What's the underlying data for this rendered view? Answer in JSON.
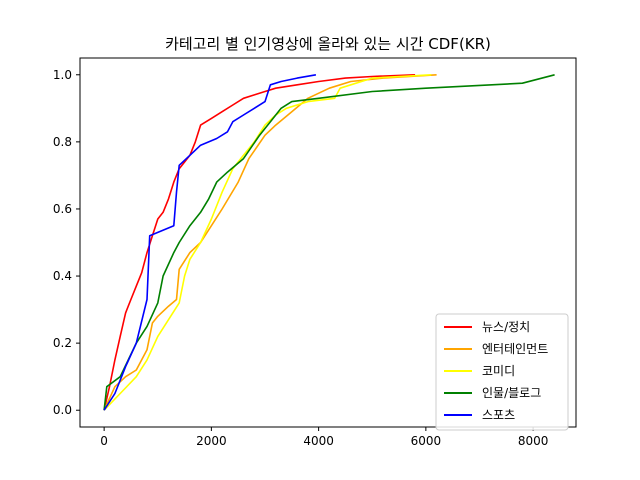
{
  "chart_data": {
    "type": "line",
    "title": "카테고리 별 인기영상에 올라와 있는 시간 CDF(KR)",
    "xlabel": "",
    "ylabel": "",
    "xlim": [
      -450,
      8800
    ],
    "ylim": [
      -0.05,
      1.05
    ],
    "xticks": [
      0,
      2000,
      4000,
      6000,
      8000
    ],
    "yticks": [
      0.0,
      0.2,
      0.4,
      0.6,
      0.8,
      1.0
    ],
    "xtick_labels": [
      "0",
      "2000",
      "4000",
      "6000",
      "8000"
    ],
    "ytick_labels": [
      "0.0",
      "0.2",
      "0.4",
      "0.6",
      "0.8",
      "1.0"
    ],
    "grid": false,
    "legend_position": "lower-right",
    "series": [
      {
        "name": "뉴스/정치",
        "color": "#ff0000",
        "x": [
          0,
          100,
          200,
          300,
          400,
          500,
          600,
          700,
          800,
          900,
          1000,
          1100,
          1200,
          1300,
          1400,
          1500,
          1600,
          1700,
          1800,
          2000,
          2200,
          2400,
          2600,
          2800,
          3000,
          3200,
          3600,
          4000,
          4500,
          5000,
          5800
        ],
        "y": [
          0,
          0.07,
          0.15,
          0.22,
          0.29,
          0.33,
          0.37,
          0.41,
          0.47,
          0.52,
          0.57,
          0.59,
          0.63,
          0.68,
          0.72,
          0.74,
          0.76,
          0.8,
          0.85,
          0.87,
          0.89,
          0.91,
          0.93,
          0.94,
          0.95,
          0.96,
          0.97,
          0.98,
          0.99,
          0.995,
          1.0
        ]
      },
      {
        "name": "엔터테인먼트",
        "color": "#ffa500",
        "x": [
          0,
          200,
          400,
          600,
          800,
          900,
          1000,
          1200,
          1350,
          1400,
          1600,
          1800,
          2000,
          2200,
          2500,
          2700,
          3000,
          3200,
          3500,
          3800,
          4200,
          4600,
          5200,
          6200
        ],
        "y": [
          0,
          0.07,
          0.1,
          0.12,
          0.18,
          0.26,
          0.28,
          0.31,
          0.33,
          0.42,
          0.47,
          0.5,
          0.55,
          0.6,
          0.68,
          0.75,
          0.82,
          0.85,
          0.89,
          0.93,
          0.96,
          0.98,
          0.99,
          1.0
        ]
      },
      {
        "name": "코미디",
        "color": "#ffff00",
        "x": [
          0,
          300,
          600,
          800,
          1000,
          1200,
          1400,
          1500,
          1600,
          1800,
          2000,
          2200,
          2400,
          2600,
          2800,
          3000,
          3200,
          3400,
          3800,
          4300,
          4400,
          5000,
          6100
        ],
        "y": [
          0,
          0.05,
          0.1,
          0.15,
          0.22,
          0.27,
          0.32,
          0.4,
          0.45,
          0.5,
          0.57,
          0.65,
          0.72,
          0.76,
          0.8,
          0.85,
          0.88,
          0.9,
          0.92,
          0.93,
          0.96,
          0.99,
          1.0
        ]
      },
      {
        "name": "인물/블로그",
        "color": "#008000",
        "x": [
          0,
          50,
          300,
          600,
          800,
          1000,
          1100,
          1300,
          1400,
          1600,
          1800,
          1950,
          2100,
          2300,
          2600,
          2900,
          3100,
          3300,
          3500,
          4000,
          5000,
          6000,
          7800,
          8400
        ],
        "y": [
          0,
          0.07,
          0.1,
          0.2,
          0.25,
          0.32,
          0.4,
          0.47,
          0.5,
          0.55,
          0.59,
          0.63,
          0.68,
          0.71,
          0.75,
          0.82,
          0.86,
          0.9,
          0.92,
          0.93,
          0.95,
          0.96,
          0.975,
          1.0
        ]
      },
      {
        "name": "스포츠",
        "color": "#0000ff",
        "x": [
          0,
          200,
          400,
          600,
          800,
          850,
          1300,
          1350,
          1400,
          1600,
          1800,
          2100,
          2300,
          2400,
          2600,
          2800,
          3000,
          3100,
          3300,
          3600,
          3950
        ],
        "y": [
          0,
          0.05,
          0.13,
          0.2,
          0.33,
          0.52,
          0.55,
          0.65,
          0.73,
          0.76,
          0.79,
          0.81,
          0.83,
          0.86,
          0.88,
          0.9,
          0.92,
          0.97,
          0.98,
          0.99,
          1.0
        ]
      }
    ]
  }
}
